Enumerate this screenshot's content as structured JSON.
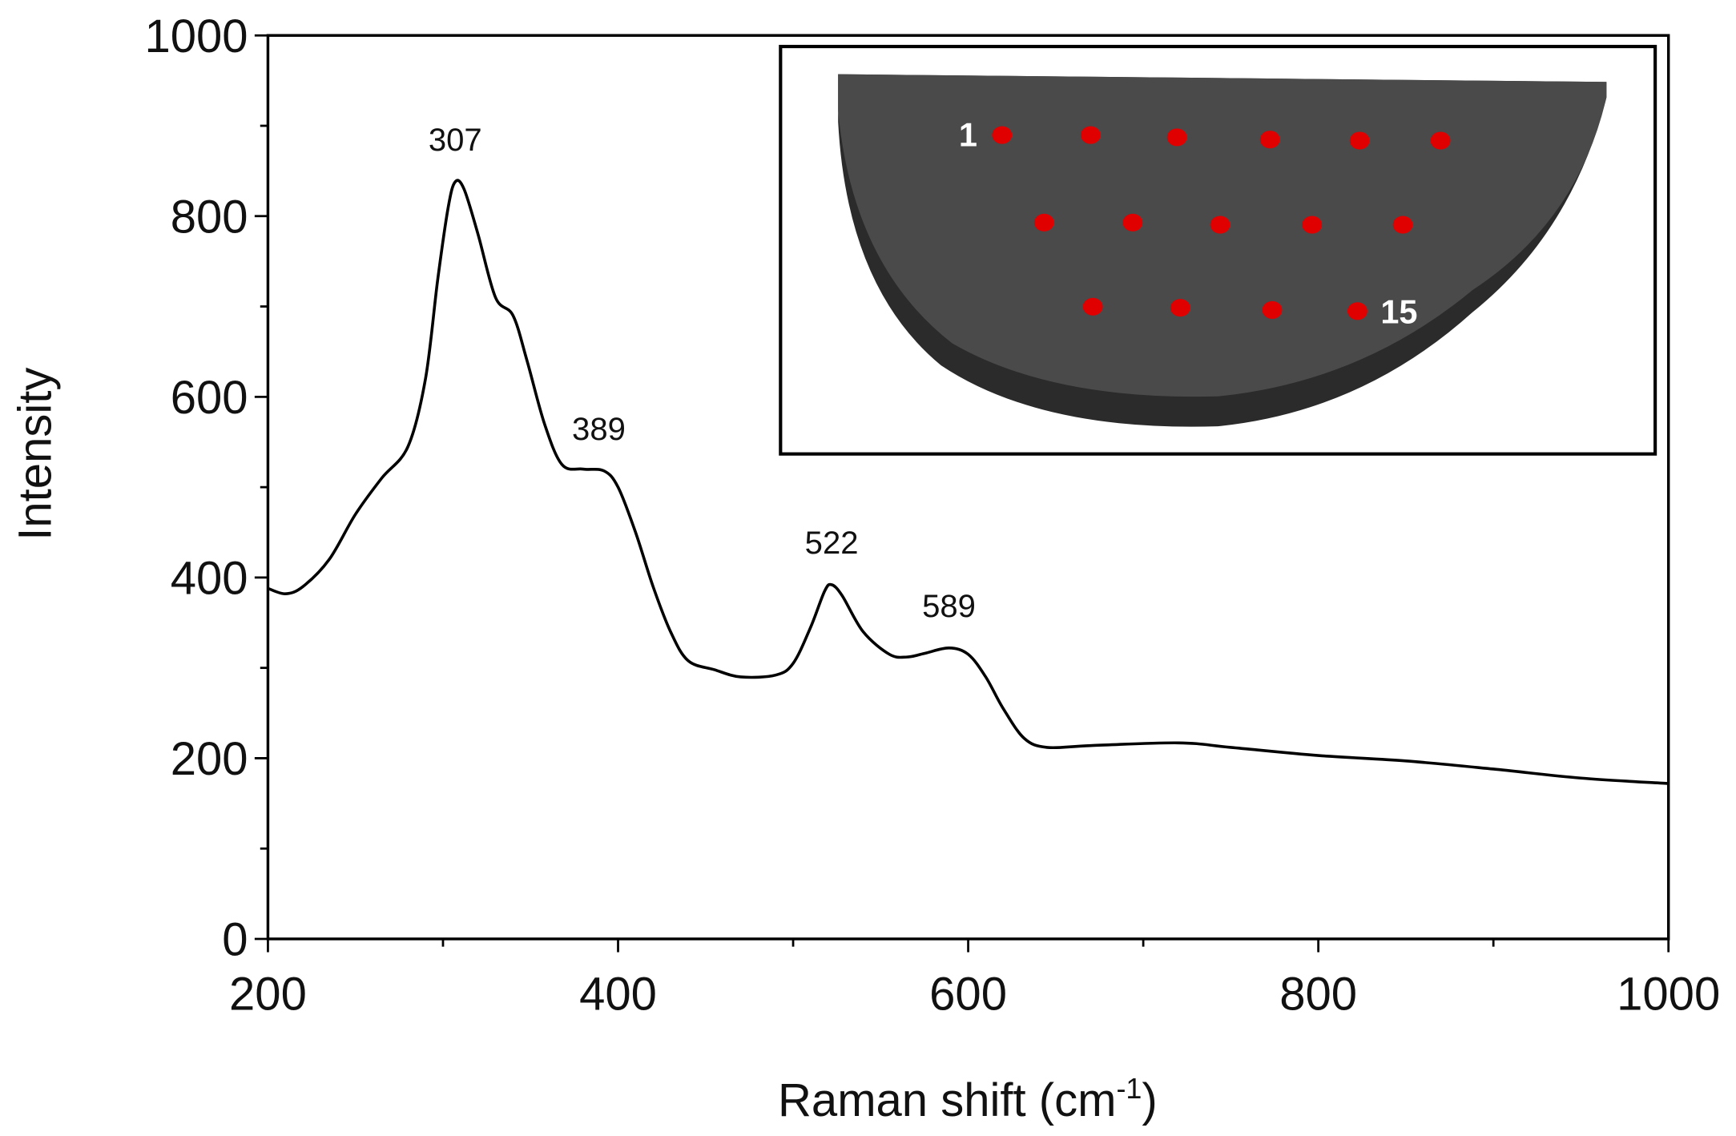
{
  "chart_data": {
    "type": "line",
    "title": "",
    "xlabel": "Raman shift (cm",
    "xlabel_superscript": "-1",
    "xlabel_suffix": ")",
    "ylabel": "Intensity",
    "xlim": [
      200,
      1000
    ],
    "ylim": [
      0,
      1000
    ],
    "x_ticks": [
      200,
      400,
      600,
      800,
      1000
    ],
    "y_ticks": [
      0,
      200,
      400,
      600,
      800,
      1000
    ],
    "grid": false,
    "line_color": "#000000",
    "series": [
      {
        "x": [
          200,
          210,
          220,
          235,
          250,
          265,
          280,
          290,
          297,
          303,
          307,
          312,
          320,
          330,
          340,
          348,
          358,
          368,
          380,
          392,
          400,
          410,
          420,
          430,
          440,
          455,
          470,
          490,
          500,
          510,
          518,
          522,
          528,
          540,
          555,
          565,
          575,
          589,
          600,
          610,
          620,
          632,
          645,
          670,
          720,
          750,
          800,
          850,
          900,
          950,
          1000
        ],
        "y": [
          388,
          382,
          390,
          420,
          470,
          510,
          545,
          620,
          730,
          810,
          838,
          830,
          780,
          710,
          690,
          640,
          570,
          525,
          520,
          518,
          500,
          450,
          390,
          340,
          308,
          298,
          290,
          292,
          305,
          345,
          385,
          392,
          380,
          340,
          315,
          312,
          316,
          322,
          315,
          290,
          255,
          222,
          212,
          214,
          217,
          212,
          203,
          197,
          188,
          178,
          172
        ]
      }
    ],
    "annotations": [
      {
        "text": "307",
        "x": 307,
        "y": 838
      },
      {
        "text": "389",
        "x": 389,
        "y": 518
      },
      {
        "text": "522",
        "x": 522,
        "y": 392
      },
      {
        "text": "589",
        "x": 589,
        "y": 322
      }
    ],
    "inset": {
      "description_type": "sample-disc-with-measurement-spots",
      "disc_color": "#4a4a4a",
      "spot_color": "#e00000",
      "spot_count": 15,
      "first_label": "1",
      "last_label": "15"
    }
  }
}
